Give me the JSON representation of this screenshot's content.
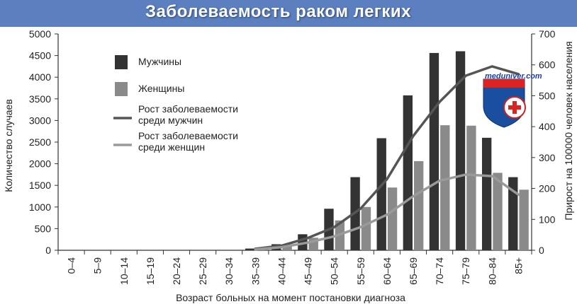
{
  "header": {
    "title": "Заболеваемость раком легких"
  },
  "logo": {
    "text": "meduniver.com"
  },
  "chart_data": {
    "type": "bar",
    "xlabel": "Возраст больных на момент постановки диагноза",
    "ylabel": "Количество случаев",
    "y2label": "Прирост на 100000 человек населения",
    "ylim": [
      0,
      5000
    ],
    "y2lim": [
      0,
      700
    ],
    "yticks": [
      "0",
      "500",
      "1000",
      "1500",
      "2000",
      "2500",
      "3000",
      "3500",
      "4000",
      "4500",
      "5000"
    ],
    "y2ticks": [
      "0",
      "100",
      "200",
      "300",
      "400",
      "500",
      "600",
      "700"
    ],
    "categories": [
      "0–4",
      "5–9",
      "10–14",
      "15–19",
      "20–24",
      "25–29",
      "30–34",
      "35–39",
      "40–44",
      "45–49",
      "50–54",
      "55–59",
      "60–64",
      "65–69",
      "70–74",
      "75–79",
      "80–84",
      "85+"
    ],
    "series": [
      {
        "name": "Мужчины",
        "type": "bar",
        "axis": "left",
        "color": "#333333",
        "values": [
          0,
          0,
          0,
          0,
          0,
          0,
          0,
          40,
          140,
          370,
          960,
          1690,
          2590,
          3580,
          4560,
          4600,
          2600,
          1690
        ]
      },
      {
        "name": "Женщины",
        "type": "bar",
        "axis": "left",
        "color": "#8a8a8a",
        "values": [
          0,
          0,
          0,
          0,
          0,
          0,
          0,
          20,
          100,
          290,
          690,
          1000,
          1450,
          2060,
          2890,
          2880,
          1790,
          1400
        ]
      },
      {
        "name": "Рост заболеваемости\nсреди мужчин",
        "type": "line",
        "axis": "right",
        "color": "#555555",
        "values": [
          0,
          0,
          0,
          0,
          0,
          0,
          0,
          5,
          15,
          40,
          75,
          135,
          230,
          370,
          480,
          565,
          595,
          570
        ]
      },
      {
        "name": "Рост заболеваемости\nсреди женщин",
        "type": "line",
        "axis": "right",
        "color": "#9a9a9a",
        "values": [
          0,
          0,
          0,
          0,
          0,
          0,
          0,
          3,
          10,
          25,
          45,
          75,
          115,
          175,
          225,
          245,
          240,
          180
        ]
      }
    ],
    "legend": [
      {
        "label": "Мужчины",
        "kind": "bar",
        "color": "#333333"
      },
      {
        "label": "Женщины",
        "kind": "bar",
        "color": "#8a8a8a"
      },
      {
        "label": "Рост заболеваемости\nсреди мужчин",
        "kind": "line",
        "color": "#555555"
      },
      {
        "label": "Рост заболеваемости\nсреди женщин",
        "kind": "line",
        "color": "#9a9a9a"
      }
    ],
    "legend_position": "top-left",
    "grid": false
  }
}
